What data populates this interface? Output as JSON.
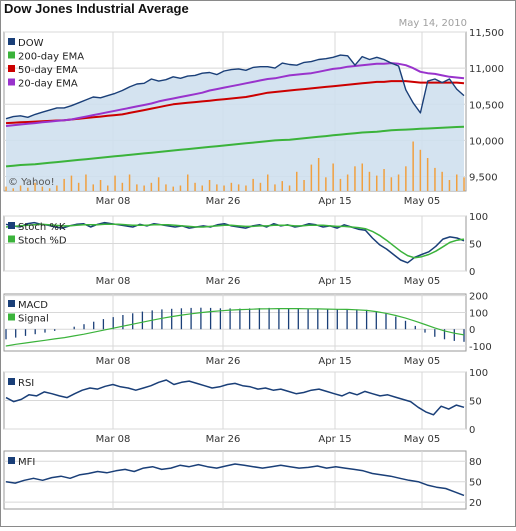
{
  "header": {
    "title": "Dow Jones Industrial Average",
    "date": "May 14, 2010",
    "watermark": "© Yahoo!"
  },
  "chart_data": [
    {
      "type": "line",
      "name": "price",
      "legend": [
        "DOW",
        "200-day EMA",
        "50-day EMA",
        "20-day EMA"
      ],
      "legend_placement": "top-left",
      "colors": {
        "DOW": "#1a3f78",
        "200-day EMA": "#3bb33b",
        "50-day EMA": "#cc0000",
        "20-day EMA": "#9933cc",
        "volume": "#f0a040"
      },
      "ylim": [
        9300,
        11500
      ],
      "yticks": [
        9500,
        10000,
        10500,
        11000,
        11500
      ],
      "ytick_labels": [
        "9,500",
        "10,000",
        "10,500",
        "11,000",
        "11,500"
      ],
      "xticks": [
        "Mar 08",
        "Mar 26",
        "Apr 15",
        "May 05"
      ],
      "series": [
        {
          "name": "DOW",
          "values": [
            10300,
            10330,
            10340,
            10320,
            10360,
            10390,
            10420,
            10450,
            10450,
            10480,
            10520,
            10560,
            10600,
            10590,
            10620,
            10650,
            10690,
            10740,
            10780,
            10790,
            10850,
            10820,
            10840,
            10880,
            10860,
            10890,
            10900,
            10930,
            10940,
            10910,
            10960,
            10980,
            10990,
            10970,
            11010,
            11020,
            11020,
            11000,
            11070,
            11050,
            11040,
            11080,
            11090,
            11120,
            11130,
            11150,
            11180,
            11170,
            11040,
            11160,
            11120,
            11150,
            11120,
            11070,
            11030,
            10700,
            10520,
            10380,
            10820,
            10850,
            10800,
            10850,
            10710,
            10620
          ]
        },
        {
          "name": "20-day EMA",
          "values": [
            10200,
            10210,
            10220,
            10230,
            10240,
            10250,
            10260,
            10270,
            10280,
            10290,
            10310,
            10330,
            10350,
            10370,
            10390,
            10410,
            10430,
            10450,
            10470,
            10490,
            10510,
            10540,
            10560,
            10580,
            10600,
            10620,
            10640,
            10660,
            10690,
            10710,
            10730,
            10750,
            10770,
            10790,
            10810,
            10830,
            10850,
            10860,
            10880,
            10900,
            10910,
            10920,
            10930,
            10950,
            10970,
            10990,
            11000,
            11020,
            11030,
            11040,
            11050,
            11060,
            11060,
            11070,
            11060,
            11040,
            11000,
            10950,
            10930,
            10920,
            10900,
            10880,
            10870,
            10860
          ]
        },
        {
          "name": "50-day EMA",
          "values": [
            10240,
            10245,
            10250,
            10255,
            10260,
            10265,
            10270,
            10275,
            10280,
            10290,
            10300,
            10310,
            10320,
            10330,
            10340,
            10350,
            10360,
            10380,
            10400,
            10420,
            10440,
            10460,
            10480,
            10500,
            10510,
            10520,
            10530,
            10540,
            10550,
            10560,
            10570,
            10580,
            10590,
            10600,
            10620,
            10640,
            10660,
            10670,
            10680,
            10690,
            10700,
            10710,
            10720,
            10730,
            10740,
            10750,
            10760,
            10770,
            10780,
            10790,
            10800,
            10810,
            10810,
            10820,
            10820,
            10820,
            10810,
            10800,
            10800,
            10800,
            10800,
            10800,
            10800,
            10790
          ]
        },
        {
          "name": "200-day EMA",
          "values": [
            9640,
            9650,
            9660,
            9665,
            9670,
            9680,
            9690,
            9700,
            9710,
            9720,
            9730,
            9740,
            9750,
            9760,
            9770,
            9780,
            9790,
            9800,
            9810,
            9820,
            9830,
            9840,
            9850,
            9860,
            9870,
            9880,
            9890,
            9900,
            9910,
            9920,
            9930,
            9940,
            9950,
            9960,
            9970,
            9980,
            9990,
            10000,
            10005,
            10010,
            10020,
            10030,
            10040,
            10050,
            10060,
            10070,
            10080,
            10090,
            10100,
            10110,
            10115,
            10120,
            10130,
            10140,
            10145,
            10150,
            10155,
            10160,
            10165,
            10170,
            10175,
            10180,
            10185,
            10190
          ]
        },
        {
          "name": "volume",
          "values": [
            0.08,
            0.05,
            0.1,
            0.06,
            0.15,
            0.08,
            0.05,
            0.1,
            0.22,
            0.28,
            0.15,
            0.3,
            0.12,
            0.2,
            0.1,
            0.28,
            0.15,
            0.3,
            0.12,
            0.1,
            0.15,
            0.25,
            0.12,
            0.08,
            0.1,
            0.3,
            0.15,
            0.1,
            0.2,
            0.12,
            0.1,
            0.15,
            0.12,
            0.1,
            0.22,
            0.15,
            0.3,
            0.12,
            0.18,
            0.1,
            0.35,
            0.2,
            0.48,
            0.6,
            0.25,
            0.5,
            0.22,
            0.3,
            0.45,
            0.5,
            0.35,
            0.28,
            0.4,
            0.25,
            0.3,
            0.45,
            0.9,
            0.75,
            0.6,
            0.42,
            0.35,
            0.2,
            0.3,
            0.25
          ]
        }
      ]
    },
    {
      "type": "line",
      "name": "stochastics",
      "legend": [
        "Stoch %K",
        "Stoch %D"
      ],
      "legend_placement": "top-left",
      "colors": {
        "Stoch %K": "#1a3f78",
        "Stoch %D": "#3bb33b"
      },
      "ylim": [
        0,
        100
      ],
      "yticks": [
        0,
        50,
        100
      ],
      "ytick_labels": [
        "0",
        "50",
        "100"
      ],
      "xticks": [
        "Mar 08",
        "Mar 26",
        "Apr 15",
        "May 05"
      ],
      "series": [
        {
          "name": "Stoch %K",
          "values": [
            85,
            82,
            80,
            86,
            88,
            85,
            83,
            80,
            78,
            82,
            85,
            86,
            80,
            85,
            88,
            86,
            84,
            82,
            80,
            85,
            82,
            86,
            84,
            82,
            80,
            82,
            78,
            80,
            82,
            80,
            84,
            86,
            82,
            80,
            78,
            82,
            84,
            80,
            86,
            82,
            84,
            80,
            82,
            86,
            84,
            80,
            82,
            78,
            84,
            80,
            76,
            74,
            60,
            48,
            40,
            30,
            20,
            15,
            25,
            30,
            35,
            45,
            58,
            62,
            60,
            55
          ]
        },
        {
          "name": "Stoch %D",
          "values": [
            80,
            81,
            82,
            83,
            84,
            85,
            84,
            83,
            82,
            82,
            83,
            84,
            84,
            84,
            85,
            85,
            85,
            84,
            83,
            83,
            83,
            84,
            84,
            84,
            83,
            82,
            81,
            80,
            80,
            81,
            82,
            83,
            83,
            82,
            81,
            81,
            82,
            82,
            83,
            83,
            83,
            82,
            82,
            83,
            83,
            83,
            82,
            81,
            81,
            80,
            79,
            77,
            72,
            65,
            56,
            46,
            36,
            28,
            24,
            26,
            30,
            36,
            44,
            52,
            56,
            58
          ]
        }
      ]
    },
    {
      "type": "bar",
      "name": "macd",
      "legend": [
        "MACD",
        "Signal"
      ],
      "legend_placement": "top-left",
      "colors": {
        "MACD": "#1a3f78",
        "Signal": "#3bb33b"
      },
      "ylim": [
        -130,
        210
      ],
      "yticks": [
        -100,
        0,
        100,
        200
      ],
      "ytick_labels": [
        "-100",
        "0",
        "100",
        "200"
      ],
      "xticks": [
        "Mar 08",
        "Mar 26",
        "Apr 15",
        "May 05"
      ],
      "series": [
        {
          "name": "MACD",
          "values": [
            -60,
            -50,
            -40,
            -30,
            -20,
            -10,
            0,
            15,
            30,
            45,
            60,
            72,
            85,
            95,
            105,
            112,
            118,
            122,
            125,
            127,
            128,
            127,
            125,
            124,
            123,
            124,
            126,
            127,
            126,
            124,
            122,
            120,
            119,
            118,
            118,
            119,
            118,
            115,
            108,
            95,
            75,
            50,
            20,
            -20,
            -45,
            -60,
            -70,
            -75
          ]
        },
        {
          "name": "Signal",
          "values": [
            -100,
            -90,
            -82,
            -74,
            -66,
            -58,
            -50,
            -40,
            -30,
            -18,
            -6,
            6,
            18,
            30,
            42,
            54,
            65,
            75,
            84,
            92,
            99,
            105,
            110,
            114,
            117,
            119,
            121,
            122,
            123,
            123,
            123,
            122,
            121,
            120,
            119,
            118,
            116,
            112,
            105,
            95,
            82,
            66,
            48,
            28,
            8,
            -10,
            -24,
            -34
          ]
        }
      ]
    },
    {
      "type": "line",
      "name": "rsi",
      "legend": [
        "RSI"
      ],
      "legend_placement": "top-left",
      "colors": {
        "RSI": "#1a3f78"
      },
      "ylim": [
        0,
        100
      ],
      "yticks": [
        0,
        50,
        100
      ],
      "ytick_labels": [
        "0",
        "50",
        "100"
      ],
      "xticks": [
        "Mar 08",
        "Mar 26",
        "Apr 15",
        "May 05"
      ],
      "series": [
        {
          "name": "RSI",
          "values": [
            55,
            48,
            52,
            60,
            58,
            65,
            62,
            58,
            55,
            62,
            68,
            72,
            70,
            75,
            78,
            74,
            72,
            68,
            72,
            76,
            82,
            86,
            78,
            82,
            84,
            80,
            76,
            72,
            74,
            78,
            80,
            76,
            74,
            70,
            72,
            68,
            70,
            66,
            62,
            64,
            68,
            70,
            66,
            62,
            58,
            64,
            60,
            66,
            62,
            58,
            60,
            56,
            52,
            48,
            38,
            30,
            25,
            40,
            35,
            42,
            38
          ]
        }
      ]
    },
    {
      "type": "line",
      "name": "mfi",
      "legend": [
        "MFI"
      ],
      "legend_placement": "top-left",
      "colors": {
        "MFI": "#1a3f78"
      },
      "ylim": [
        10,
        95
      ],
      "yticks": [
        20,
        50,
        80
      ],
      "ytick_labels": [
        "20",
        "50",
        "80"
      ],
      "xticks": [
        "Mar 08",
        "Mar 26",
        "Apr 15",
        "May 05"
      ],
      "series": [
        {
          "name": "MFI",
          "values": [
            50,
            48,
            52,
            55,
            52,
            56,
            58,
            55,
            60,
            62,
            65,
            63,
            66,
            68,
            65,
            70,
            72,
            68,
            70,
            74,
            72,
            75,
            72,
            70,
            73,
            76,
            74,
            72,
            70,
            72,
            74,
            72,
            70,
            71,
            73,
            70,
            72,
            70,
            68,
            66,
            62,
            60,
            58,
            55,
            52,
            50,
            45,
            42,
            40,
            35,
            30
          ]
        }
      ]
    }
  ]
}
